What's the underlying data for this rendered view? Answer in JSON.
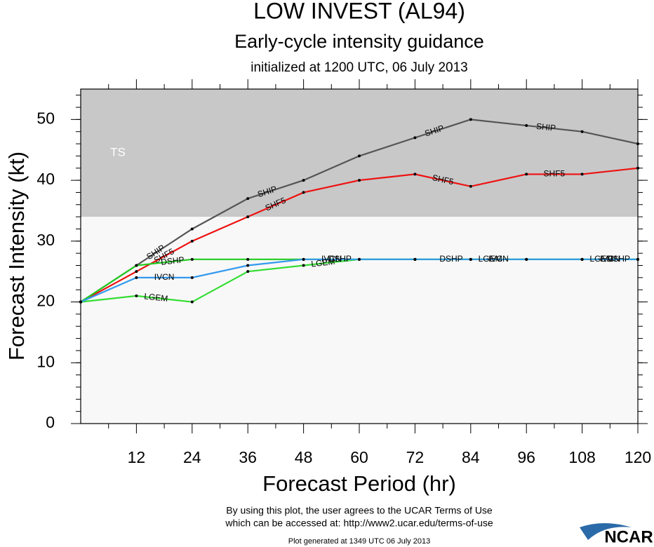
{
  "chart_data": {
    "type": "line",
    "title": "LOW INVEST (AL94)",
    "subtitle": "Early-cycle intensity guidance",
    "subtitle2": "initialized at 1200 UTC, 06 July 2013",
    "x_label": "Forecast Period (hr)",
    "y_label": "Forecast Intensity (kt)",
    "x": [
      0,
      12,
      24,
      36,
      48,
      60,
      72,
      84,
      96,
      108,
      120
    ],
    "series": [
      {
        "name": "SHIP",
        "color": "#555555",
        "values": [
          20,
          26,
          32,
          37,
          40,
          44,
          47,
          50,
          49,
          48,
          46
        ]
      },
      {
        "name": "SHF5",
        "color": "#ee1111",
        "values": [
          20,
          25,
          30,
          34,
          38,
          40,
          41,
          39,
          41,
          41,
          42
        ]
      },
      {
        "name": "DSHP",
        "color": "#22cc22",
        "values": [
          20,
          26,
          27,
          27,
          27,
          27,
          27,
          27,
          27,
          27,
          27
        ]
      },
      {
        "name": "LGEM",
        "color": "#33dd33",
        "values": [
          20,
          21,
          20,
          25,
          26,
          27,
          27,
          27,
          27,
          27,
          27
        ]
      },
      {
        "name": "IVCN",
        "color": "#3399ee",
        "values": [
          20,
          24,
          24,
          26,
          27,
          27,
          27,
          27,
          27,
          27,
          27
        ]
      }
    ],
    "xlim": [
      0,
      120
    ],
    "xticks": [
      12,
      24,
      36,
      48,
      60,
      72,
      84,
      96,
      108,
      120
    ],
    "ylim": [
      0,
      55
    ],
    "yticks": [
      0,
      10,
      20,
      30,
      40,
      50
    ],
    "ts_band": {
      "label": "TS",
      "min": 34
    },
    "footer": [
      "By using this plot, the user agrees to the UCAR Terms of Use",
      "which can be accessed at: http://www2.ucar.edu/terms-of-use"
    ],
    "generated": "Plot generated at 1349 UTC   06 July 2013",
    "logo": "NCAR"
  }
}
